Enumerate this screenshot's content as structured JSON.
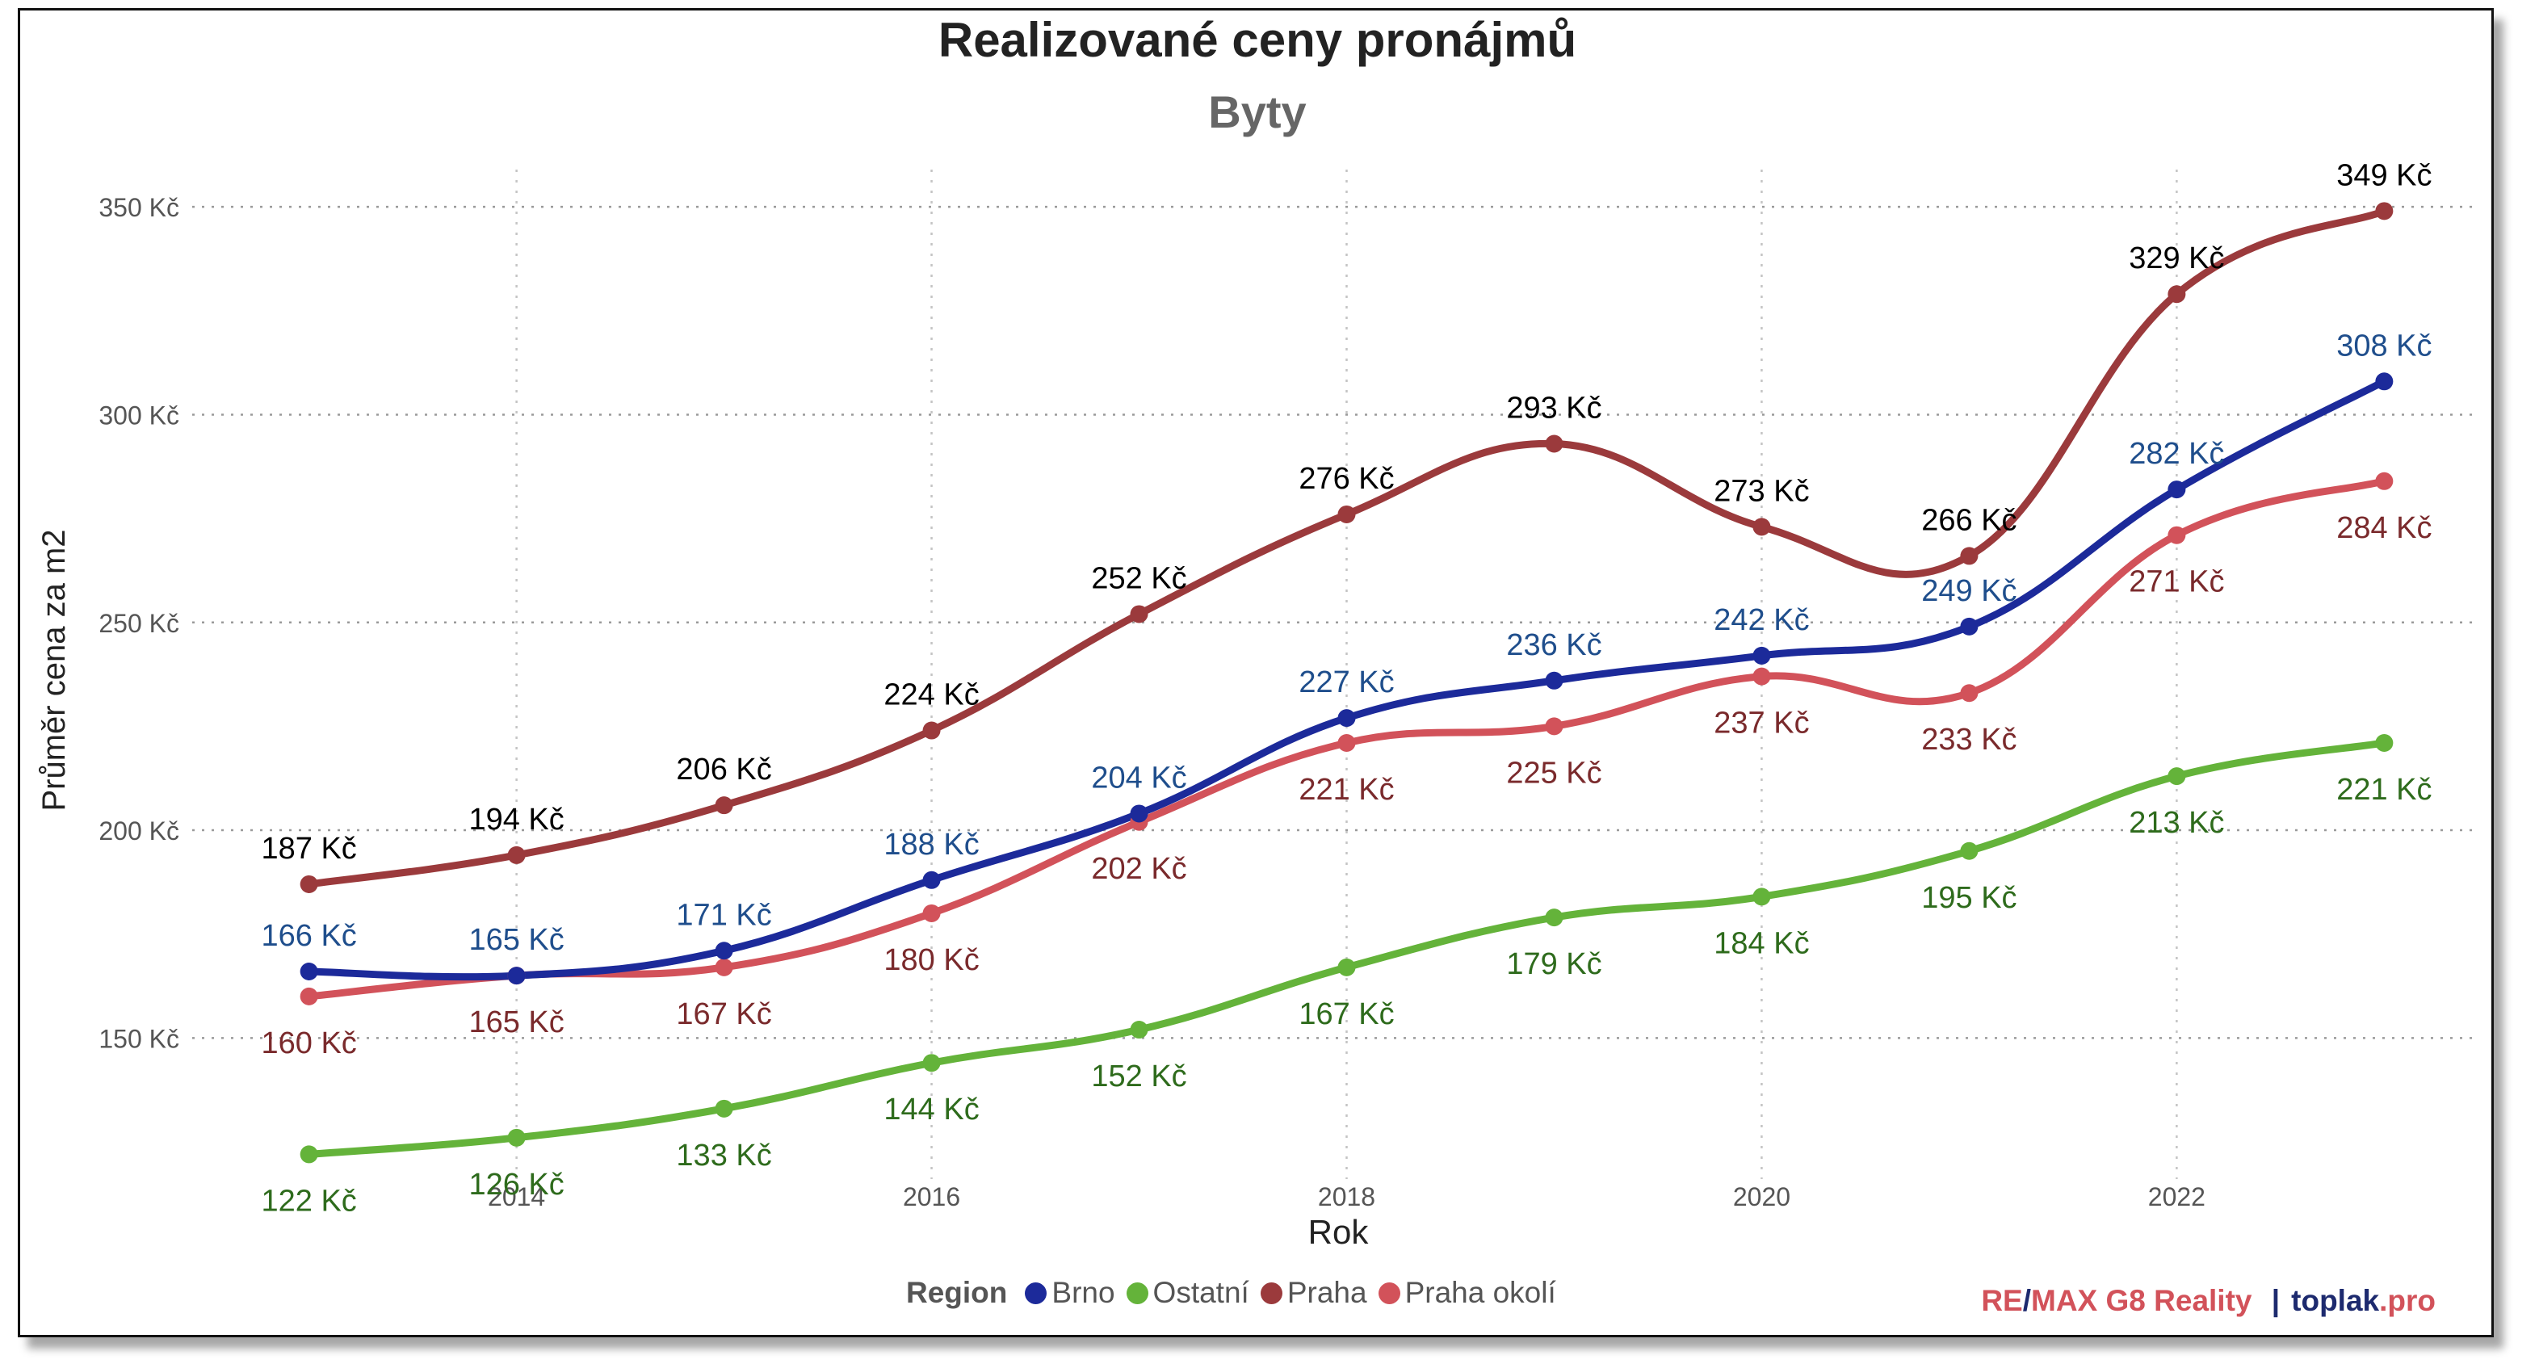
{
  "chart_data": {
    "type": "line",
    "title": "Realizované ceny pronájmů",
    "subtitle": "Byty",
    "xlabel": "Rok",
    "ylabel": "Průměr cena za m2",
    "x": [
      2013,
      2014,
      2015,
      2016,
      2017,
      2018,
      2019,
      2020,
      2021,
      2022,
      2023
    ],
    "x_ticks": [
      "2014",
      "2016",
      "2018",
      "2020",
      "2022"
    ],
    "y_ticks": [
      "150 Kč",
      "200 Kč",
      "250 Kč",
      "300 Kč",
      "350 Kč"
    ],
    "ylim": [
      118,
      358
    ],
    "grid": true,
    "legend": {
      "title": "Region",
      "position": "bottom",
      "items": [
        "Brno",
        "Ostatní",
        "Praha",
        "Praha okolí"
      ]
    },
    "series": [
      {
        "name": "Brno",
        "color": "#1c2a9a",
        "label_color": "#1f4e8c",
        "values": [
          166,
          165,
          171,
          188,
          204,
          227,
          236,
          242,
          249,
          282,
          308
        ],
        "labels": [
          "166 Kč",
          "165 Kč",
          "171 Kč",
          "188 Kč",
          "204 Kč",
          "227 Kč",
          "236 Kč",
          "242 Kč",
          "249 Kč",
          "282 Kč",
          "308 Kč"
        ]
      },
      {
        "name": "Ostatní",
        "color": "#64b33a",
        "label_color": "#2e6b1c",
        "values": [
          122,
          126,
          133,
          144,
          152,
          167,
          179,
          184,
          195,
          213,
          221
        ],
        "labels": [
          "122 Kč",
          "126 Kč",
          "133 Kč",
          "144 Kč",
          "152 Kč",
          "167 Kč",
          "179 Kč",
          "184 Kč",
          "195 Kč",
          "213 Kč",
          "221 Kč"
        ]
      },
      {
        "name": "Praha",
        "color": "#9b3a3c",
        "label_color": "#000000",
        "values": [
          187,
          194,
          206,
          224,
          252,
          276,
          293,
          273,
          266,
          329,
          349
        ],
        "labels": [
          "187 Kč",
          "194 Kč",
          "206 Kč",
          "224 Kč",
          "252 Kč",
          "276 Kč",
          "293 Kč",
          "273 Kč",
          "266 Kč",
          "329 Kč",
          "349 Kč"
        ]
      },
      {
        "name": "Praha okolí",
        "color": "#d2525a",
        "label_color": "#7a2a2c",
        "values": [
          160,
          165,
          167,
          180,
          202,
          221,
          225,
          237,
          233,
          271,
          284
        ],
        "labels": [
          "160 Kč",
          "165 Kč",
          "167 Kč",
          "180 Kč",
          "202 Kč",
          "221 Kč",
          "225 Kč",
          "237 Kč",
          "233 Kč",
          "271 Kč",
          "284 Kč"
        ]
      }
    ]
  },
  "brand": {
    "re": "RE",
    "slash": "/",
    "max": "MAX G8 Reality",
    "sep": "|",
    "toplak": "toplak",
    "pro": ".pro",
    "red": "#d2525a",
    "navy": "#1d2a6e"
  }
}
